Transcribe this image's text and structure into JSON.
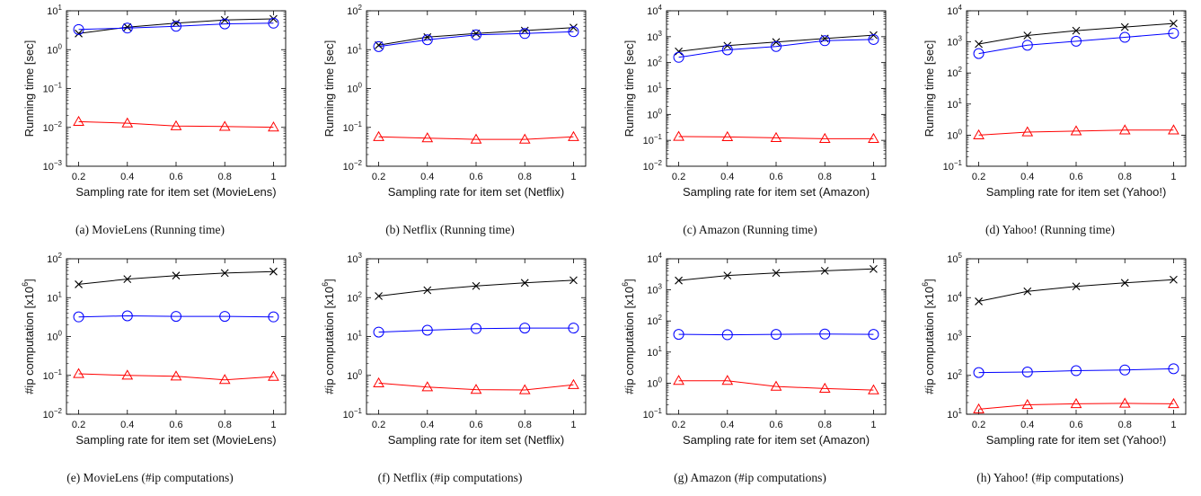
{
  "colors": {
    "series_x": "#000000",
    "series_o": "#0000ff",
    "series_tri": "#ff0000"
  },
  "chart_data": [
    {
      "type": "line",
      "y_scale": "log",
      "caption": "(a)  MovieLens (Running time)",
      "xlabel": "Sampling rate for item set (MovieLens)",
      "ylabel": "Running time [sec]",
      "ylabel_sup": "",
      "ylabel_suffix": "",
      "x": [
        0.2,
        0.4,
        0.6,
        0.8,
        1
      ],
      "x_ticks": [
        "0.2",
        "0.4",
        "0.6",
        "0.8",
        "1"
      ],
      "ylim_exp": [
        -3,
        1
      ],
      "series": [
        {
          "marker": "x",
          "values": [
            2.6,
            3.8,
            4.8,
            5.8,
            6.2
          ]
        },
        {
          "marker": "o",
          "values": [
            3.3,
            3.6,
            4.0,
            4.6,
            4.8
          ]
        },
        {
          "marker": "triangle",
          "values": [
            0.014,
            0.0128,
            0.0108,
            0.0105,
            0.0101
          ]
        }
      ]
    },
    {
      "type": "line",
      "y_scale": "log",
      "caption": "(b)  Netflix (Running time)",
      "xlabel": "Sampling rate for item set (Netflix)",
      "ylabel": "Running time [sec]",
      "ylabel_sup": "",
      "ylabel_suffix": "",
      "x": [
        0.2,
        0.4,
        0.6,
        0.8,
        1
      ],
      "x_ticks": [
        "0.2",
        "0.4",
        "0.6",
        "0.8",
        "1"
      ],
      "ylim_exp": [
        -2,
        2
      ],
      "series": [
        {
          "marker": "x",
          "values": [
            13,
            21,
            26,
            31,
            37
          ]
        },
        {
          "marker": "o",
          "values": [
            12,
            18,
            24,
            26,
            29
          ]
        },
        {
          "marker": "triangle",
          "values": [
            0.057,
            0.053,
            0.049,
            0.049,
            0.057
          ]
        }
      ]
    },
    {
      "type": "line",
      "y_scale": "log",
      "caption": "(c)  Amazon (Running time)",
      "xlabel": "Sampling rate for item set (Amazon)",
      "ylabel": "Running time [sec]",
      "ylabel_sup": "",
      "ylabel_suffix": "",
      "x": [
        0.2,
        0.4,
        0.6,
        0.8,
        1
      ],
      "x_ticks": [
        "0.2",
        "0.4",
        "0.6",
        "0.8",
        "1"
      ],
      "ylim_exp": [
        -2,
        4
      ],
      "series": [
        {
          "marker": "x",
          "values": [
            270,
            450,
            620,
            850,
            1150
          ]
        },
        {
          "marker": "o",
          "values": [
            160,
            310,
            420,
            700,
            780
          ]
        },
        {
          "marker": "triangle",
          "values": [
            0.14,
            0.135,
            0.125,
            0.115,
            0.115
          ]
        }
      ]
    },
    {
      "type": "line",
      "y_scale": "log",
      "caption": "(d)  Yahoo! (Running time)",
      "xlabel": "Sampling rate for item set (Yahoo!)",
      "ylabel": "Running time [sec]",
      "ylabel_sup": "",
      "ylabel_suffix": "",
      "x": [
        0.2,
        0.4,
        0.6,
        0.8,
        1
      ],
      "x_ticks": [
        "0.2",
        "0.4",
        "0.6",
        "0.8",
        "1"
      ],
      "ylim_exp": [
        -1,
        4
      ],
      "series": [
        {
          "marker": "x",
          "values": [
            850,
            1600,
            2300,
            3000,
            3900
          ]
        },
        {
          "marker": "o",
          "values": [
            420,
            780,
            1050,
            1400,
            1900
          ]
        },
        {
          "marker": "triangle",
          "values": [
            1.0,
            1.25,
            1.35,
            1.45,
            1.45
          ]
        }
      ]
    },
    {
      "type": "line",
      "y_scale": "log",
      "caption": "(e)  MovieLens (#ip computations)",
      "xlabel": "Sampling rate for item set (MovieLens)",
      "ylabel": "#ip computation [x10",
      "ylabel_sup": "6",
      "ylabel_suffix": "]",
      "x": [
        0.2,
        0.4,
        0.6,
        0.8,
        1
      ],
      "x_ticks": [
        "0.2",
        "0.4",
        "0.6",
        "0.8",
        "1"
      ],
      "ylim_exp": [
        -2,
        2
      ],
      "series": [
        {
          "marker": "x",
          "values": [
            22,
            30,
            37,
            43,
            47
          ]
        },
        {
          "marker": "o",
          "values": [
            3.2,
            3.4,
            3.3,
            3.3,
            3.2
          ]
        },
        {
          "marker": "triangle",
          "values": [
            0.11,
            0.1,
            0.095,
            0.077,
            0.093
          ]
        }
      ]
    },
    {
      "type": "line",
      "y_scale": "log",
      "caption": "(f)  Netflix (#ip computations)",
      "xlabel": "Sampling rate for item set (Netflix)",
      "ylabel": "#ip computation [x10",
      "ylabel_sup": "6",
      "ylabel_suffix": "]",
      "x": [
        0.2,
        0.4,
        0.6,
        0.8,
        1
      ],
      "x_ticks": [
        "0.2",
        "0.4",
        "0.6",
        "0.8",
        "1"
      ],
      "ylim_exp": [
        -1,
        3
      ],
      "series": [
        {
          "marker": "x",
          "values": [
            110,
            155,
            200,
            240,
            280
          ]
        },
        {
          "marker": "o",
          "values": [
            13,
            14.5,
            16,
            16.5,
            16.5
          ]
        },
        {
          "marker": "triangle",
          "values": [
            0.63,
            0.5,
            0.43,
            0.42,
            0.57
          ]
        }
      ]
    },
    {
      "type": "line",
      "y_scale": "log",
      "caption": "(g)  Amazon (#ip computations)",
      "xlabel": "Sampling rate for item set (Amazon)",
      "ylabel": "#ip computation [x10",
      "ylabel_sup": "6",
      "ylabel_suffix": "]",
      "x": [
        0.2,
        0.4,
        0.6,
        0.8,
        1
      ],
      "x_ticks": [
        "0.2",
        "0.4",
        "0.6",
        "0.8",
        "1"
      ],
      "ylim_exp": [
        -1,
        4
      ],
      "series": [
        {
          "marker": "x",
          "values": [
            2000,
            2900,
            3500,
            4100,
            4700
          ]
        },
        {
          "marker": "o",
          "values": [
            37,
            36,
            37,
            38,
            37
          ]
        },
        {
          "marker": "triangle",
          "values": [
            1.2,
            1.2,
            0.78,
            0.67,
            0.6
          ]
        }
      ]
    },
    {
      "type": "line",
      "y_scale": "log",
      "caption": "(h)  Yahoo! (#ip computations)",
      "xlabel": "Sampling rate for item set (Yahoo!)",
      "ylabel": "#ip computation [x10",
      "ylabel_sup": "6",
      "ylabel_suffix": "]",
      "x": [
        0.2,
        0.4,
        0.6,
        0.8,
        1
      ],
      "x_ticks": [
        "0.2",
        "0.4",
        "0.6",
        "0.8",
        "1"
      ],
      "ylim_exp": [
        1,
        5
      ],
      "series": [
        {
          "marker": "x",
          "values": [
            8000,
            14500,
            19500,
            24000,
            29000
          ]
        },
        {
          "marker": "o",
          "values": [
            118,
            122,
            132,
            138,
            148
          ]
        },
        {
          "marker": "triangle",
          "values": [
            13.5,
            17.5,
            18.5,
            19,
            18.5
          ]
        }
      ]
    }
  ]
}
